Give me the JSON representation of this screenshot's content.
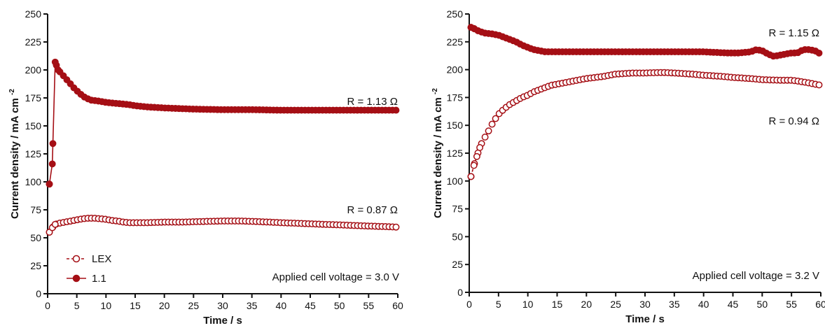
{
  "colors": {
    "series": "#a50f15",
    "axis": "#111111"
  },
  "chart_data": [
    {
      "type": "scatter",
      "xlabel": "Time / s",
      "ylabel": "Current density / mA cm",
      "ylabel_superscript": "-2",
      "xlim": [
        0,
        60
      ],
      "ylim": [
        0,
        250
      ],
      "xticks": [
        0,
        5,
        10,
        15,
        20,
        25,
        30,
        35,
        40,
        45,
        50,
        55,
        60
      ],
      "yticks": [
        0,
        25,
        50,
        75,
        100,
        125,
        150,
        175,
        200,
        225,
        250
      ],
      "grid": false,
      "legend": "bottom-left",
      "annotations": [
        "R = 1.13 Ω",
        "R = 0.87 Ω",
        "Applied cell voltage = 3.0 V"
      ],
      "series": [
        {
          "name": "LEX",
          "marker": "open-circle",
          "line": "dashed",
          "points": [
            [
              0.3,
              55
            ],
            [
              0.8,
              59
            ],
            [
              1.3,
              62
            ],
            [
              2,
              63
            ],
            [
              3,
              64
            ],
            [
              4,
              65
            ],
            [
              5,
              66
            ],
            [
              6,
              67
            ],
            [
              7,
              67.5
            ],
            [
              8,
              67.5
            ],
            [
              9,
              67
            ],
            [
              10,
              66.5
            ],
            [
              11,
              65.5
            ],
            [
              12,
              65
            ],
            [
              13,
              64
            ],
            [
              14,
              63.5
            ],
            [
              15,
              63.5
            ],
            [
              17,
              63.5
            ],
            [
              20,
              64
            ],
            [
              23,
              64
            ],
            [
              26,
              64.5
            ],
            [
              30,
              65
            ],
            [
              33,
              65
            ],
            [
              36,
              64.5
            ],
            [
              40,
              63.5
            ],
            [
              45,
              62.5
            ],
            [
              50,
              61.5
            ],
            [
              55,
              60.5
            ],
            [
              58,
              60
            ],
            [
              60,
              59.5
            ]
          ]
        },
        {
          "name": "1.1",
          "marker": "filled-circle",
          "line": "solid",
          "points": [
            [
              0.3,
              98
            ],
            [
              0.8,
              116
            ],
            [
              1.3,
              207
            ],
            [
              1.8,
              200
            ],
            [
              2.5,
              196
            ],
            [
              3.5,
              190
            ],
            [
              4.5,
              184
            ],
            [
              5.5,
              179
            ],
            [
              6.5,
              175
            ],
            [
              7.5,
              173
            ],
            [
              9,
              172
            ],
            [
              10,
              171
            ],
            [
              12,
              170
            ],
            [
              14,
              169
            ],
            [
              15,
              168
            ],
            [
              17,
              167
            ],
            [
              20,
              166
            ],
            [
              25,
              165
            ],
            [
              30,
              164.5
            ],
            [
              35,
              164.5
            ],
            [
              40,
              164
            ],
            [
              45,
              164
            ],
            [
              50,
              164
            ],
            [
              55,
              164
            ],
            [
              60,
              164
            ]
          ]
        }
      ]
    },
    {
      "type": "scatter",
      "xlabel": "Time / s",
      "ylabel": "Current density / mA cm",
      "ylabel_superscript": "-2",
      "xlim": [
        0,
        60
      ],
      "ylim": [
        0,
        250
      ],
      "xticks": [
        0,
        5,
        10,
        15,
        20,
        25,
        30,
        35,
        40,
        45,
        50,
        55,
        60
      ],
      "yticks": [
        0,
        25,
        50,
        75,
        100,
        125,
        150,
        175,
        200,
        225,
        250
      ],
      "grid": false,
      "legend": "none",
      "annotations": [
        "R = 1.15 Ω",
        "R = 0.94 Ω",
        "Applied cell voltage = 3.2 V"
      ],
      "series": [
        {
          "marker": "open-circle",
          "line": "dashed",
          "points": [
            [
              0.3,
              104
            ],
            [
              0.8,
              114
            ],
            [
              1.3,
              122
            ],
            [
              1.8,
              130
            ],
            [
              2.3,
              136
            ],
            [
              3,
              142
            ],
            [
              3.5,
              147
            ],
            [
              4,
              152
            ],
            [
              4.5,
              156
            ],
            [
              5,
              160
            ],
            [
              6,
              165
            ],
            [
              7,
              169
            ],
            [
              8,
              172
            ],
            [
              9,
              175
            ],
            [
              10,
              177
            ],
            [
              11,
              180
            ],
            [
              12,
              182
            ],
            [
              13,
              184
            ],
            [
              14,
              186
            ],
            [
              15,
              187
            ],
            [
              17,
              189
            ],
            [
              20,
              192
            ],
            [
              23,
              194
            ],
            [
              25,
              196
            ],
            [
              28,
              197
            ],
            [
              30,
              197
            ],
            [
              33,
              197.5
            ],
            [
              35,
              197
            ],
            [
              38,
              196
            ],
            [
              40,
              195
            ],
            [
              43,
              194
            ],
            [
              45,
              193
            ],
            [
              48,
              192
            ],
            [
              50,
              191
            ],
            [
              53,
              190.5
            ],
            [
              55,
              190.5
            ],
            [
              57,
              189
            ],
            [
              59,
              187
            ],
            [
              60,
              186
            ]
          ]
        },
        {
          "marker": "filled-circle",
          "line": "solid",
          "points": [
            [
              0.3,
              238
            ],
            [
              0.8,
              237
            ],
            [
              1.5,
              235
            ],
            [
              2.5,
              233
            ],
            [
              4,
              232
            ],
            [
              5,
              231
            ],
            [
              6,
              229
            ],
            [
              7,
              227
            ],
            [
              8,
              225
            ],
            [
              9,
              222
            ],
            [
              10,
              220
            ],
            [
              11,
              218
            ],
            [
              12,
              217
            ],
            [
              13,
              216
            ],
            [
              15,
              216
            ],
            [
              20,
              216
            ],
            [
              25,
              216
            ],
            [
              30,
              216
            ],
            [
              35,
              216
            ],
            [
              40,
              216
            ],
            [
              44,
              215
            ],
            [
              46,
              215
            ],
            [
              48,
              216
            ],
            [
              49,
              218
            ],
            [
              50,
              217
            ],
            [
              51,
              214
            ],
            [
              52,
              212
            ],
            [
              53,
              213
            ],
            [
              54,
              214
            ],
            [
              55,
              215
            ],
            [
              56,
              215
            ],
            [
              57,
              218
            ],
            [
              58,
              218
            ],
            [
              59,
              217
            ],
            [
              60,
              214
            ]
          ]
        }
      ]
    }
  ]
}
